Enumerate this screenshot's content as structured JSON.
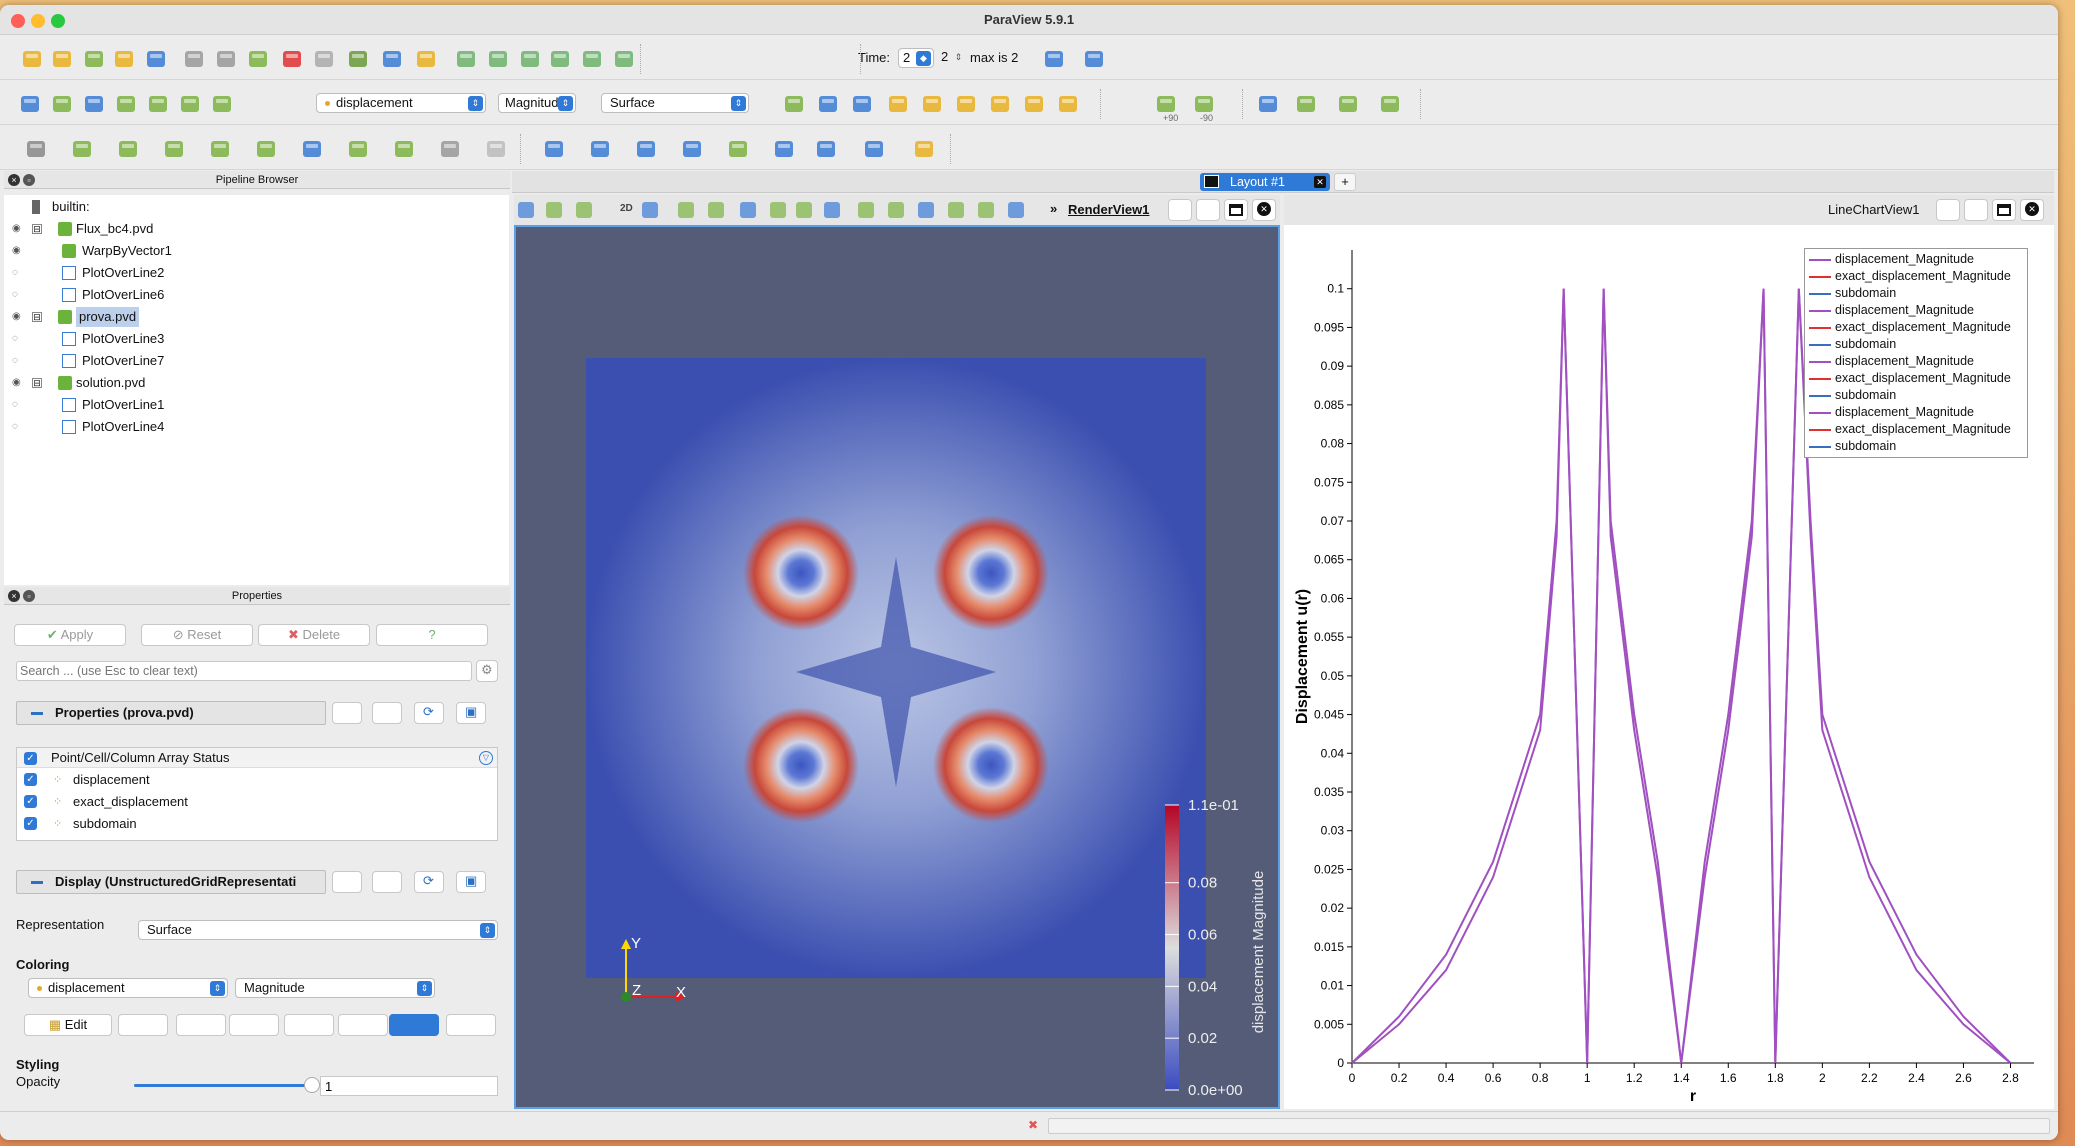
{
  "window": {
    "title": "ParaView 5.9.1"
  },
  "toolbar1": {
    "time_label": "Time:",
    "time_value": "2",
    "time_index": "2",
    "max_label": "max is 2"
  },
  "toolbar2": {
    "color_array": "displacement",
    "component": "Magnitude",
    "representation": "Surface",
    "rot_plus": "+90",
    "rot_minus": "-90"
  },
  "layout_tab": {
    "label": "Layout #1",
    "add": "+"
  },
  "pipeline": {
    "title": "Pipeline Browser",
    "items": [
      {
        "label": "builtin:"
      },
      {
        "label": "Flux_bc4.pvd"
      },
      {
        "label": "WarpByVector1"
      },
      {
        "label": "PlotOverLine2"
      },
      {
        "label": "PlotOverLine6"
      },
      {
        "label": "prova.pvd"
      },
      {
        "label": "PlotOverLine3"
      },
      {
        "label": "PlotOverLine7"
      },
      {
        "label": "solution.pvd"
      },
      {
        "label": "PlotOverLine1"
      },
      {
        "label": "PlotOverLine4"
      }
    ]
  },
  "properties": {
    "title": "Properties",
    "apply": "Apply",
    "reset": "Reset",
    "delete": "Delete",
    "help": "?",
    "search_placeholder": "Search ... (use Esc to clear text)",
    "section_props": "Properties (prova.pvd)",
    "array_header": "Point/Cell/Column Array Status",
    "arrays": [
      "displacement",
      "exact_displacement",
      "subdomain"
    ],
    "section_display": "Display (UnstructuredGridRepresentati",
    "representation_label": "Representation",
    "representation_value": "Surface",
    "coloring_label": "Coloring",
    "coloring_array": "displacement",
    "coloring_component": "Magnitude",
    "edit": "Edit",
    "styling_label": "Styling",
    "opacity_label": "Opacity",
    "opacity_value": "1",
    "opacity_fraction": 1.0
  },
  "render_view": {
    "title": "RenderView1",
    "mode_2d": "2D",
    "colorbar": {
      "title": "displacement Magnitude",
      "labels": [
        "1.1e-01",
        "0.08",
        "0.06",
        "0.04",
        "0.02",
        "0.0e+00"
      ]
    },
    "axes": {
      "y": "Y",
      "z": "Z",
      "x": "X"
    }
  },
  "line_view": {
    "title": "LineChartView1"
  },
  "chart_data": {
    "type": "line",
    "xlabel": "r",
    "ylabel": "Displacement u(r)",
    "xlim": [
      0,
      2.9
    ],
    "ylim": [
      0,
      0.105
    ],
    "xticks": [
      "0",
      "0.2",
      "0.4",
      "0.6",
      "0.8",
      "1",
      "1.2",
      "1.4",
      "1.6",
      "1.8",
      "2",
      "2.2",
      "2.4",
      "2.6",
      "2.8"
    ],
    "yticks": [
      "0",
      "0.005",
      "0.01",
      "0.015",
      "0.02",
      "0.025",
      "0.03",
      "0.035",
      "0.04",
      "0.045",
      "0.05",
      "0.055",
      "0.06",
      "0.065",
      "0.07",
      "0.075",
      "0.08",
      "0.085",
      "0.09",
      "0.095",
      "0.1"
    ],
    "legend_position": "top-right",
    "legend": [
      {
        "name": "displacement_Magnitude",
        "color": "#a050c0"
      },
      {
        "name": "exact_displacement_Magnitude",
        "color": "#e03030"
      },
      {
        "name": "subdomain",
        "color": "#3a6fc0"
      },
      {
        "name": "displacement_Magnitude",
        "color": "#a050c0"
      },
      {
        "name": "exact_displacement_Magnitude",
        "color": "#e03030"
      },
      {
        "name": "subdomain",
        "color": "#3a6fc0"
      },
      {
        "name": "displacement_Magnitude",
        "color": "#a050c0"
      },
      {
        "name": "exact_displacement_Magnitude",
        "color": "#e03030"
      },
      {
        "name": "subdomain",
        "color": "#3a6fc0"
      },
      {
        "name": "displacement_Magnitude",
        "color": "#a050c0"
      },
      {
        "name": "exact_displacement_Magnitude",
        "color": "#e03030"
      },
      {
        "name": "subdomain",
        "color": "#3a6fc0"
      }
    ],
    "series": [
      {
        "color": "#a050c0",
        "x": [
          0,
          0.2,
          0.4,
          0.6,
          0.8,
          0.87,
          0.9,
          1.0,
          1.07,
          1.1,
          1.2,
          1.3,
          1.4,
          1.5,
          1.6,
          1.7,
          1.75,
          1.8,
          1.9,
          1.95,
          2.0,
          2.2,
          2.4,
          2.6,
          2.8
        ],
        "y": [
          0,
          0.006,
          0.014,
          0.026,
          0.045,
          0.07,
          0.1,
          0,
          0.1,
          0.07,
          0.045,
          0.026,
          0,
          0.026,
          0.045,
          0.07,
          0.1,
          0,
          0.1,
          0.07,
          0.045,
          0.026,
          0.014,
          0.006,
          0
        ]
      },
      {
        "color": "#a050c0",
        "x": [
          0,
          0.2,
          0.4,
          0.6,
          0.8,
          0.87,
          0.9,
          1.0,
          1.07,
          1.1,
          1.2,
          1.3,
          1.4,
          1.5,
          1.6,
          1.7,
          1.75,
          1.8,
          1.9,
          1.95,
          2.0,
          2.2,
          2.4,
          2.6,
          2.8
        ],
        "y": [
          0,
          0.005,
          0.012,
          0.024,
          0.043,
          0.068,
          0.1,
          0,
          0.1,
          0.068,
          0.043,
          0.024,
          0,
          0.024,
          0.043,
          0.068,
          0.1,
          0,
          0.1,
          0.068,
          0.043,
          0.024,
          0.012,
          0.005,
          0
        ]
      }
    ]
  },
  "colors": {
    "accent": "#2f7ad6",
    "render_bg": "#545c78",
    "selection": "#bcd0ec"
  }
}
